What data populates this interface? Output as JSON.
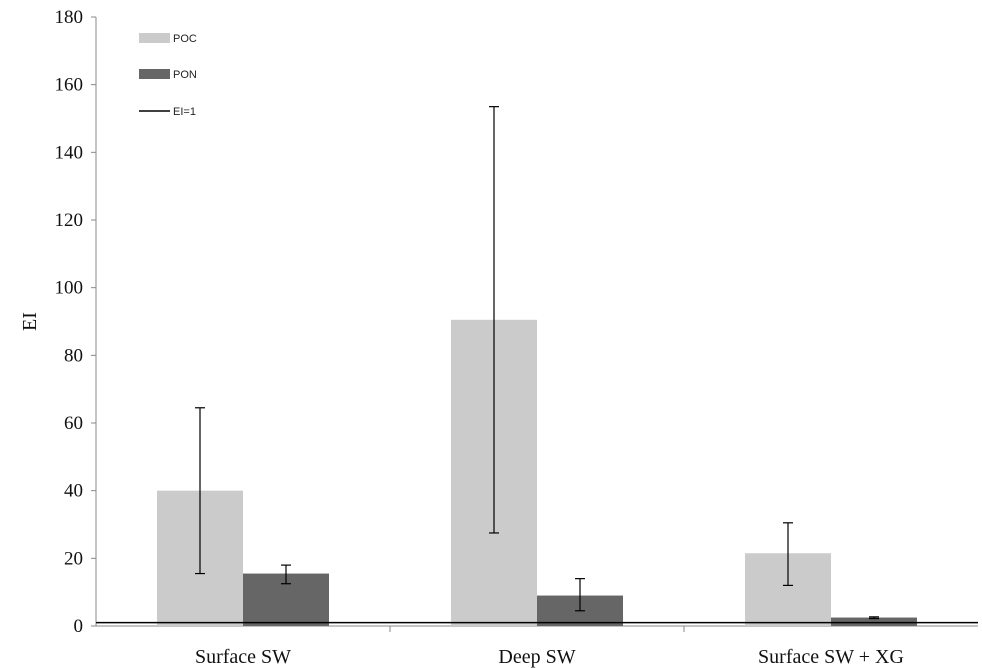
{
  "chart_data": {
    "type": "bar",
    "title": "",
    "xlabel": "",
    "ylabel": "EI",
    "ylim": [
      0,
      180
    ],
    "yticks": [
      "0",
      "20",
      "40",
      "60",
      "80",
      "100",
      "120",
      "140",
      "160",
      "180"
    ],
    "categories": [
      "Surface SW",
      "Deep SW",
      "Surface SW + XG"
    ],
    "series": [
      {
        "name": "POC",
        "color": "#cbcbcb",
        "values": [
          40,
          90.5,
          21.5
        ],
        "error_low": [
          15.5,
          27.5,
          12
        ],
        "error_high": [
          64.5,
          153.5,
          30.5
        ]
      },
      {
        "name": "PON",
        "color": "#666666",
        "values": [
          15.5,
          9,
          2.5
        ],
        "error_low": [
          12.5,
          4.5,
          2.2
        ],
        "error_high": [
          18,
          14,
          2.7
        ]
      }
    ],
    "reference_line": {
      "name": "EI=1",
      "value": 1,
      "color": "#000000"
    },
    "legend_position": "top-left",
    "grid": false
  }
}
